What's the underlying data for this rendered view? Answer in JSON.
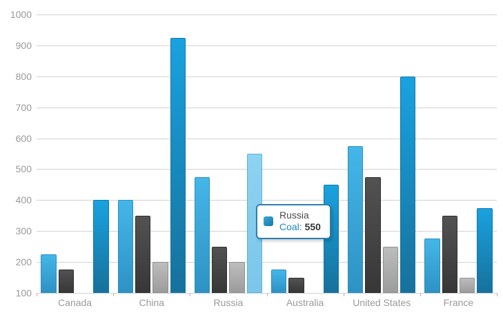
{
  "chart_data": {
    "type": "bar",
    "title": "",
    "categories": [
      "Canada",
      "China",
      "Russia",
      "Australia",
      "United States",
      "France"
    ],
    "series": [
      {
        "label": "",
        "color_top": "#45b6e8",
        "color_bottom": "#2e92c4",
        "border": "#2d8fc0",
        "values": [
          225,
          400,
          475,
          175,
          575,
          275
        ]
      },
      {
        "label": "",
        "color_top": "#525252",
        "color_bottom": "#373737",
        "border": "#2f2f2f",
        "values": [
          175,
          350,
          250,
          150,
          475,
          350
        ]
      },
      {
        "label": "",
        "color_top": "#bdbdbd",
        "color_bottom": "#9c9c9c",
        "border": "#8f8f8f",
        "values": [
          null,
          200,
          200,
          null,
          250,
          150
        ]
      },
      {
        "label": "Coal",
        "color_top": "#19a2e0",
        "color_bottom": "#17719b",
        "border": "#1277a6",
        "values": [
          400,
          925,
          550,
          450,
          800,
          375
        ]
      }
    ],
    "highlight": {
      "category": "Russia",
      "category_index": 2,
      "series_index": 3,
      "value": 550,
      "fill_top": "#8fd2f1",
      "fill_bottom": "#7cc6ea",
      "border": "#58b4e0"
    },
    "ylim": [
      100,
      1000
    ],
    "yticks": [
      100,
      200,
      300,
      400,
      500,
      600,
      700,
      800,
      900,
      1000
    ],
    "xlabel": "",
    "ylabel": "",
    "grid": "horizontal",
    "legend_position": "none"
  },
  "tooltip": {
    "category": "Russia",
    "series_label": "Coal:",
    "value": "550",
    "marker_color_top": "#35a7d9",
    "marker_color_bottom": "#1a7aa8",
    "border_color": "#2b7fb0"
  },
  "axis_style": {
    "label_color": "#9a9a9a",
    "grid_color": "#d2d2d2",
    "tick_color": "#b3b3b3"
  }
}
